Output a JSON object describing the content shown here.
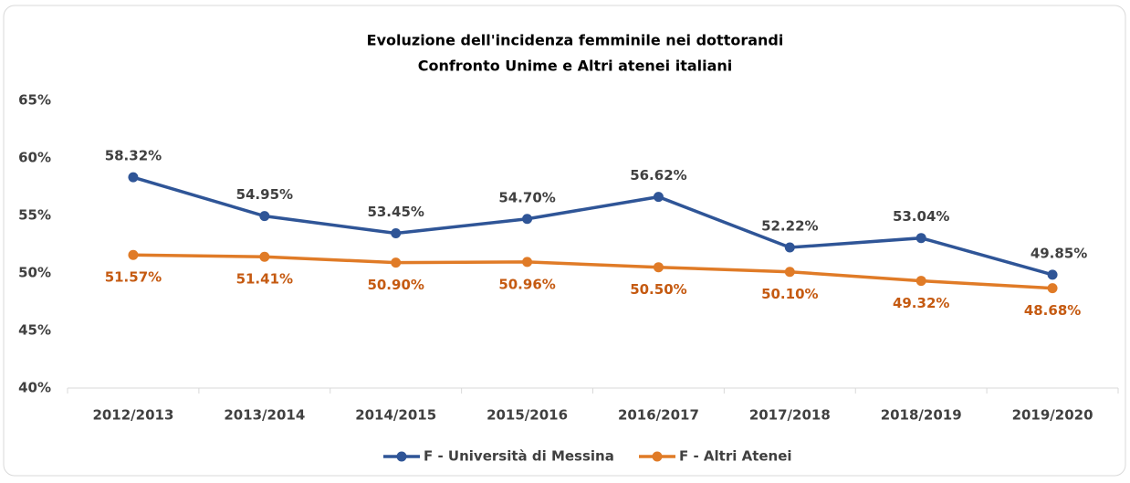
{
  "chart_data": {
    "type": "line",
    "title": "Evoluzione dell'incidenza femminile nei dottorandi",
    "subtitle": "Confronto Unime e Altri atenei italiani",
    "categories": [
      "2012/2013",
      "2013/2014",
      "2014/2015",
      "2015/2016",
      "2016/2017",
      "2017/2018",
      "2018/2019",
      "2019/2020"
    ],
    "series": [
      {
        "name": "F - Università di Messina",
        "color": "#2f5597",
        "values": [
          58.32,
          54.95,
          53.45,
          54.7,
          56.62,
          52.22,
          53.04,
          49.85
        ],
        "value_labels": [
          "58.32%",
          "54.95%",
          "53.45%",
          "54.70%",
          "56.62%",
          "52.22%",
          "53.04%",
          "49.85%"
        ]
      },
      {
        "name": "F - Altri Atenei",
        "color": "#e07b27",
        "values": [
          51.57,
          51.41,
          50.9,
          50.96,
          50.5,
          50.1,
          49.32,
          48.68
        ],
        "value_labels": [
          "51.57%",
          "51.41%",
          "50.90%",
          "50.96%",
          "50.50%",
          "50.10%",
          "49.32%",
          "48.68%"
        ]
      }
    ],
    "ylim": [
      40,
      65
    ],
    "yticks": [
      {
        "value": 40,
        "label": "40%"
      },
      {
        "value": 45,
        "label": "45%"
      },
      {
        "value": 50,
        "label": "50%"
      },
      {
        "value": 55,
        "label": "55%"
      },
      {
        "value": 60,
        "label": "60%"
      },
      {
        "value": 65,
        "label": "65%"
      }
    ],
    "grid": false,
    "legend": "bottom"
  }
}
